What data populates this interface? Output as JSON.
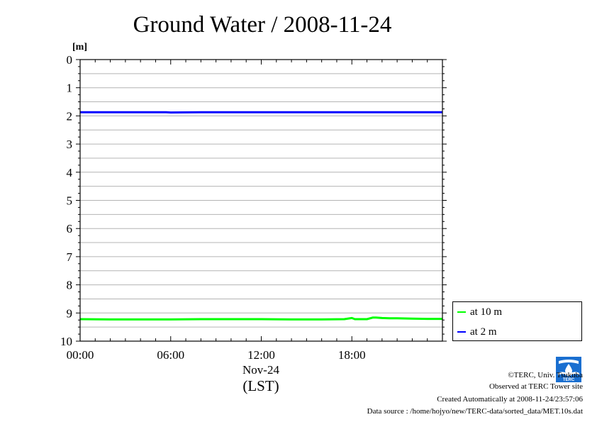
{
  "chart_data": {
    "type": "line",
    "title": "Ground Water / 2008-11-24",
    "ylabel": "[m]",
    "xlabel": "Nov-24",
    "xlabel_sub": "(LST)",
    "ylim": [
      0,
      10
    ],
    "y_inverted": true,
    "y_ticks": [
      "0",
      "1",
      "2",
      "3",
      "4",
      "5",
      "6",
      "7",
      "8",
      "9",
      "10"
    ],
    "xlim_hours": [
      0,
      24
    ],
    "x_ticks": [
      {
        "hour": 0,
        "label": "00:00"
      },
      {
        "hour": 6,
        "label": "06:00"
      },
      {
        "hour": 12,
        "label": "12:00"
      },
      {
        "hour": 18,
        "label": "18:00"
      }
    ],
    "grid": true,
    "legend_position": "bottom-right, outside plot",
    "series": [
      {
        "name": "at 10 m",
        "color": "#00ff00",
        "x": [
          0,
          2,
          4,
          6,
          8,
          10,
          12,
          14,
          16,
          17.5,
          18.0,
          18.2,
          18.5,
          19,
          19.4,
          19.6,
          20,
          20.5,
          21,
          22,
          23,
          24
        ],
        "y": [
          9.22,
          9.23,
          9.23,
          9.23,
          9.22,
          9.22,
          9.22,
          9.23,
          9.23,
          9.22,
          9.18,
          9.22,
          9.22,
          9.22,
          9.16,
          9.16,
          9.18,
          9.19,
          9.19,
          9.2,
          9.21,
          9.21
        ]
      },
      {
        "name": "at 2 m",
        "color": "#0000ff",
        "x": [
          0,
          2,
          4,
          5.7,
          6,
          8,
          10,
          12,
          14,
          16,
          18,
          20,
          22,
          24
        ],
        "y": [
          1.87,
          1.87,
          1.87,
          1.87,
          1.88,
          1.87,
          1.87,
          1.87,
          1.87,
          1.87,
          1.87,
          1.87,
          1.87,
          1.87
        ]
      }
    ]
  },
  "credits": {
    "copyright": "©TERC, Univ. Tsukuba",
    "observed": "Observed at TERC Tower site",
    "created": "Created Automatically at 2008-11-24/23:57:06",
    "source": "Data source : /home/hojyo/new/TERC-data/sorted_data/MET.10s.dat",
    "logo_text": "TERC"
  }
}
